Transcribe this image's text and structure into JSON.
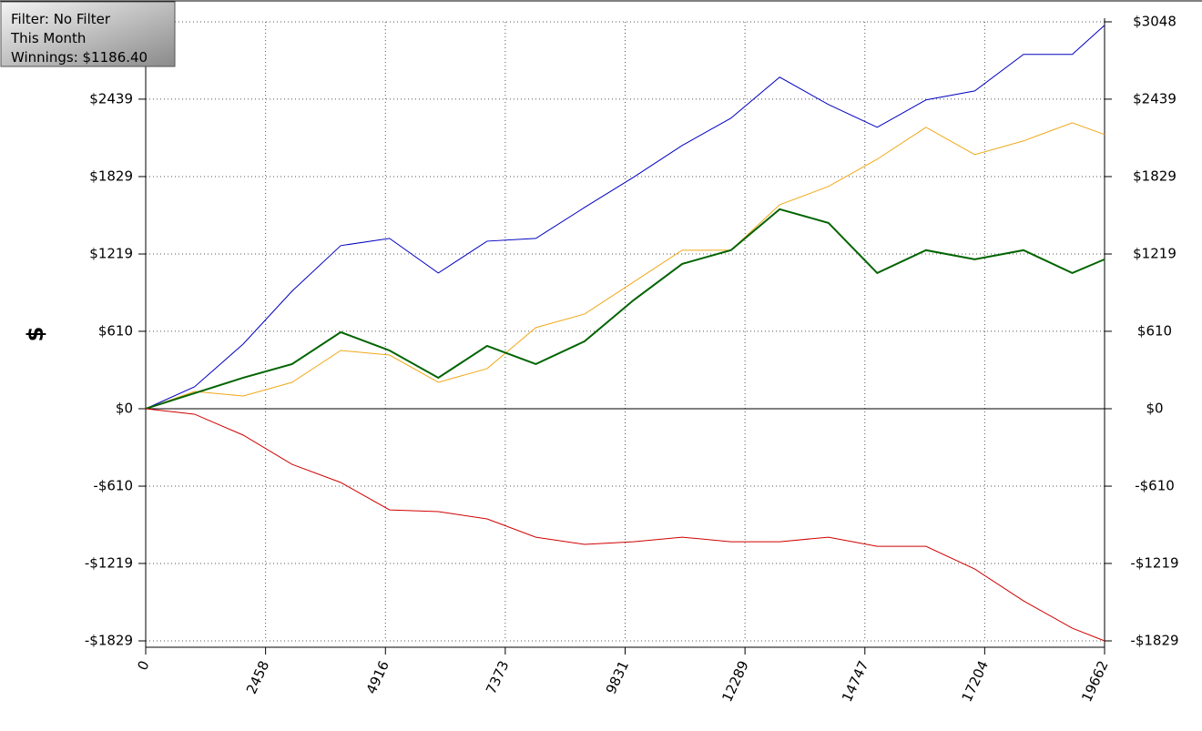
{
  "chart_data": {
    "type": "line",
    "annotations": [
      "Filter: No Filter",
      "This Month",
      "Winnings: $1186.40"
    ],
    "y_label": "$",
    "x": [
      0,
      1000,
      2000,
      3000,
      4000,
      5000,
      6000,
      7000,
      8000,
      9000,
      10000,
      11000,
      12000,
      13000,
      14000,
      15000,
      16000,
      17000,
      18000,
      19000,
      19662
    ],
    "series": [
      {
        "color": "#0000c0",
        "width": 1,
        "values": [
          0,
          172,
          510,
          926,
          1285,
          1342,
          1069,
          1320,
          1342,
          1586,
          1823,
          2074,
          2289,
          2612,
          2397,
          2217,
          2433,
          2504,
          2792,
          2792,
          3021
        ]
      },
      {
        "color": "#f0a818",
        "width": 1,
        "values": [
          0,
          136,
          100,
          208,
          459,
          423,
          208,
          316,
          639,
          746,
          997,
          1249,
          1249,
          1607,
          1751,
          1966,
          2217,
          2002,
          2110,
          2253,
          2160
        ]
      },
      {
        "color": "#006400",
        "width": 2,
        "values": [
          0,
          122,
          244,
          352,
          603,
          459,
          244,
          495,
          352,
          531,
          854,
          1141,
          1249,
          1572,
          1464,
          1069,
          1249,
          1177,
          1249,
          1069,
          1177
        ]
      },
      {
        "color": "#d00000",
        "width": 1,
        "values": [
          0,
          -43,
          -208,
          -438,
          -581,
          -797,
          -811,
          -868,
          -1012,
          -1069,
          -1048,
          -1012,
          -1048,
          -1048,
          -1012,
          -1084,
          -1084,
          -1263,
          -1514,
          -1729,
          -1829
        ]
      }
    ],
    "xlim": [
      0,
      19662
    ],
    "xticks": [
      0,
      2458,
      4916,
      7373,
      9831,
      12289,
      14747,
      17204,
      19662
    ],
    "ylim": [
      -1829,
      3048
    ],
    "yticks": [
      {
        "value": -1829,
        "label": "-$1829"
      },
      {
        "value": -1219,
        "label": "-$1219"
      },
      {
        "value": -610,
        "label": "-$610"
      },
      {
        "value": 0,
        "label": "$0"
      },
      {
        "value": 610,
        "label": "$610"
      },
      {
        "value": 1219,
        "label": "$1219"
      },
      {
        "value": 1829,
        "label": "$1829"
      },
      {
        "value": 2439,
        "label": "$2439"
      },
      {
        "value": 3048,
        "label": "$3048"
      }
    ],
    "grid": true
  }
}
